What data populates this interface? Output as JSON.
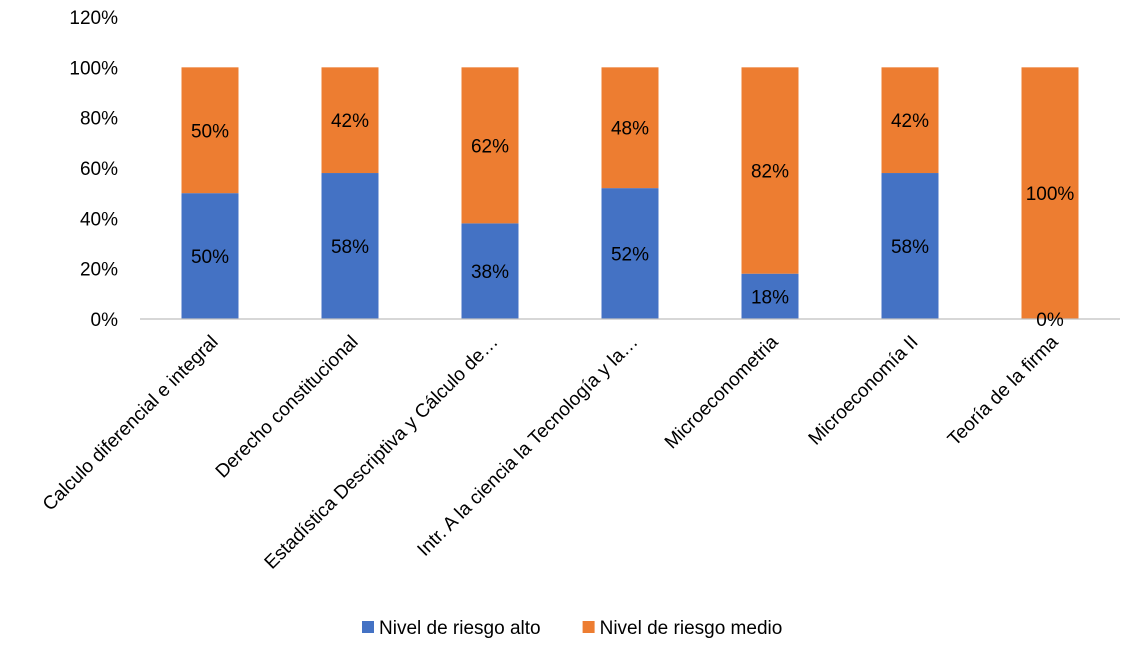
{
  "chart_data": {
    "type": "bar",
    "stacked": true,
    "categories": [
      "Calculo diferencial e integral",
      "Derecho constitucional",
      "Estadística Descriptiva y Cálculo de…",
      "Intr. A la ciencia la Tecnología y la…",
      "Microeconometria",
      "Microeconomía II",
      "Teoría de la firma"
    ],
    "series": [
      {
        "name": "Nivel de riesgo alto",
        "color": "#4472C4",
        "values": [
          0.5,
          0.58,
          0.38,
          0.52,
          0.18,
          0.58,
          0.0
        ],
        "labels": [
          "50%",
          "58%",
          "38%",
          "52%",
          "18%",
          "58%",
          "0%"
        ]
      },
      {
        "name": "Nivel de riesgo medio",
        "color": "#ED7D31",
        "values": [
          0.5,
          0.42,
          0.62,
          0.48,
          0.82,
          0.42,
          1.0
        ],
        "labels": [
          "50%",
          "42%",
          "62%",
          "48%",
          "82%",
          "42%",
          "100%"
        ]
      }
    ],
    "title": "",
    "xlabel": "",
    "ylabel": "",
    "ylim": [
      0,
      1.2
    ],
    "yticks": [
      "0%",
      "20%",
      "40%",
      "60%",
      "80%",
      "100%",
      "120%"
    ],
    "grid": false,
    "legend_position": "bottom"
  }
}
